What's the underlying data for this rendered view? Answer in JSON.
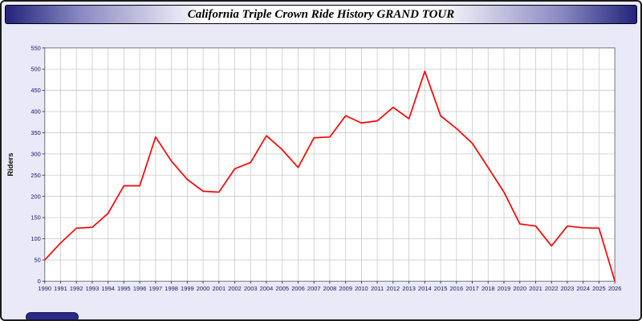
{
  "title": "California Triple Crown Ride History GRAND TOUR",
  "chart_data": {
    "type": "line",
    "title": "California Triple Crown Ride History GRAND TOUR",
    "xlabel": "",
    "ylabel": "Riders",
    "ylim": [
      0,
      550
    ],
    "y_tick_step": 50,
    "grid": true,
    "legend_position": "none",
    "line_color": "#ff0000",
    "x": [
      1990,
      1991,
      1992,
      1993,
      1994,
      1995,
      1996,
      1997,
      1998,
      1999,
      2000,
      2001,
      2002,
      2003,
      2004,
      2005,
      2006,
      2007,
      2008,
      2009,
      2010,
      2011,
      2012,
      2013,
      2014,
      2015,
      2016,
      2017,
      2018,
      2019,
      2020,
      2021,
      2022,
      2023,
      2024,
      2025,
      2026
    ],
    "series": [
      {
        "name": "Riders",
        "values": [
          50,
          90,
          125,
          127,
          160,
          225,
          225,
          340,
          283,
          240,
          212,
          210,
          265,
          280,
          343,
          310,
          268,
          338,
          340,
          390,
          373,
          378,
          410,
          383,
          495,
          390,
          360,
          325,
          268,
          210,
          135,
          130,
          83,
          130,
          126,
          125,
          0
        ]
      }
    ]
  },
  "colors": {
    "background": "#e9e9f7",
    "plot_background": "#ffffff",
    "grid": "#c9c9c9",
    "tick_text": "#16166b",
    "line": "#ff0000",
    "title_bar_edge": "#23237c"
  }
}
